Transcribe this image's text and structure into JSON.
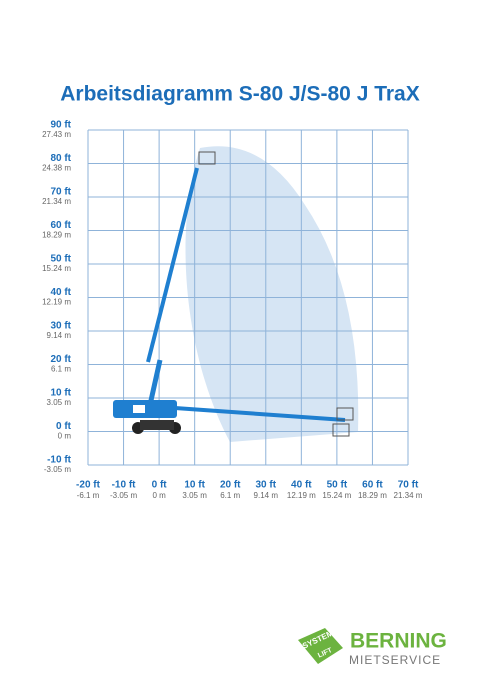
{
  "chart_data": {
    "type": "working-range",
    "title": "Arbeitsdiagramm S-80 J/S-80 J TraX",
    "xlim": [
      -20,
      70
    ],
    "ylim": [
      -10,
      90
    ],
    "xticks": [
      {
        "value": -20,
        "label": "-20 ft"
      },
      {
        "value": -10,
        "label": "-10 ft"
      },
      {
        "value": 0,
        "label": "0 ft"
      },
      {
        "value": 10,
        "label": "10 ft"
      },
      {
        "value": 20,
        "label": "20 ft"
      },
      {
        "value": 30,
        "label": "30 ft"
      },
      {
        "value": 40,
        "label": "40 ft"
      },
      {
        "value": 50,
        "label": "50 ft"
      },
      {
        "value": 60,
        "label": "60 ft"
      },
      {
        "value": 70,
        "label": "70 ft"
      }
    ],
    "xtick_metric_labels": [
      "-6.1 m",
      "-3.05 m",
      "0 m",
      "3.05 m",
      "6.1 m",
      "9.14 m",
      "12.19 m",
      "15.24 m",
      "18.29 m",
      "21.34 m"
    ],
    "yticks": [
      {
        "value": 90,
        "label": "90 ft"
      },
      {
        "value": 80,
        "label": "80 ft"
      },
      {
        "value": 70,
        "label": "70 ft"
      },
      {
        "value": 60,
        "label": "60 ft"
      },
      {
        "value": 50,
        "label": "50 ft"
      },
      {
        "value": 40,
        "label": "40 ft"
      },
      {
        "value": 30,
        "label": "30 ft"
      },
      {
        "value": 20,
        "label": "20 ft"
      },
      {
        "value": 10,
        "label": "10 ft"
      },
      {
        "value": 0,
        "label": "0 ft"
      },
      {
        "value": -10,
        "label": "-10 ft"
      }
    ],
    "ytick_metric_labels": [
      "27.43 m",
      "24.38 m",
      "21.34 m",
      "18.29 m",
      "15.24 m",
      "12.19 m",
      "9.14 m",
      "6.1 m",
      "3.05 m",
      "0 m",
      "-3.05 m"
    ],
    "grid": true,
    "grid_color": "#8fb3d9",
    "tick_color": "#1c6db8",
    "metric_color": "#666666"
  },
  "logo": {
    "badge_top": "SYSTEM",
    "badge_bottom": "LIFT",
    "name": "BERNING",
    "subtitle": "MIETSERVICE"
  }
}
